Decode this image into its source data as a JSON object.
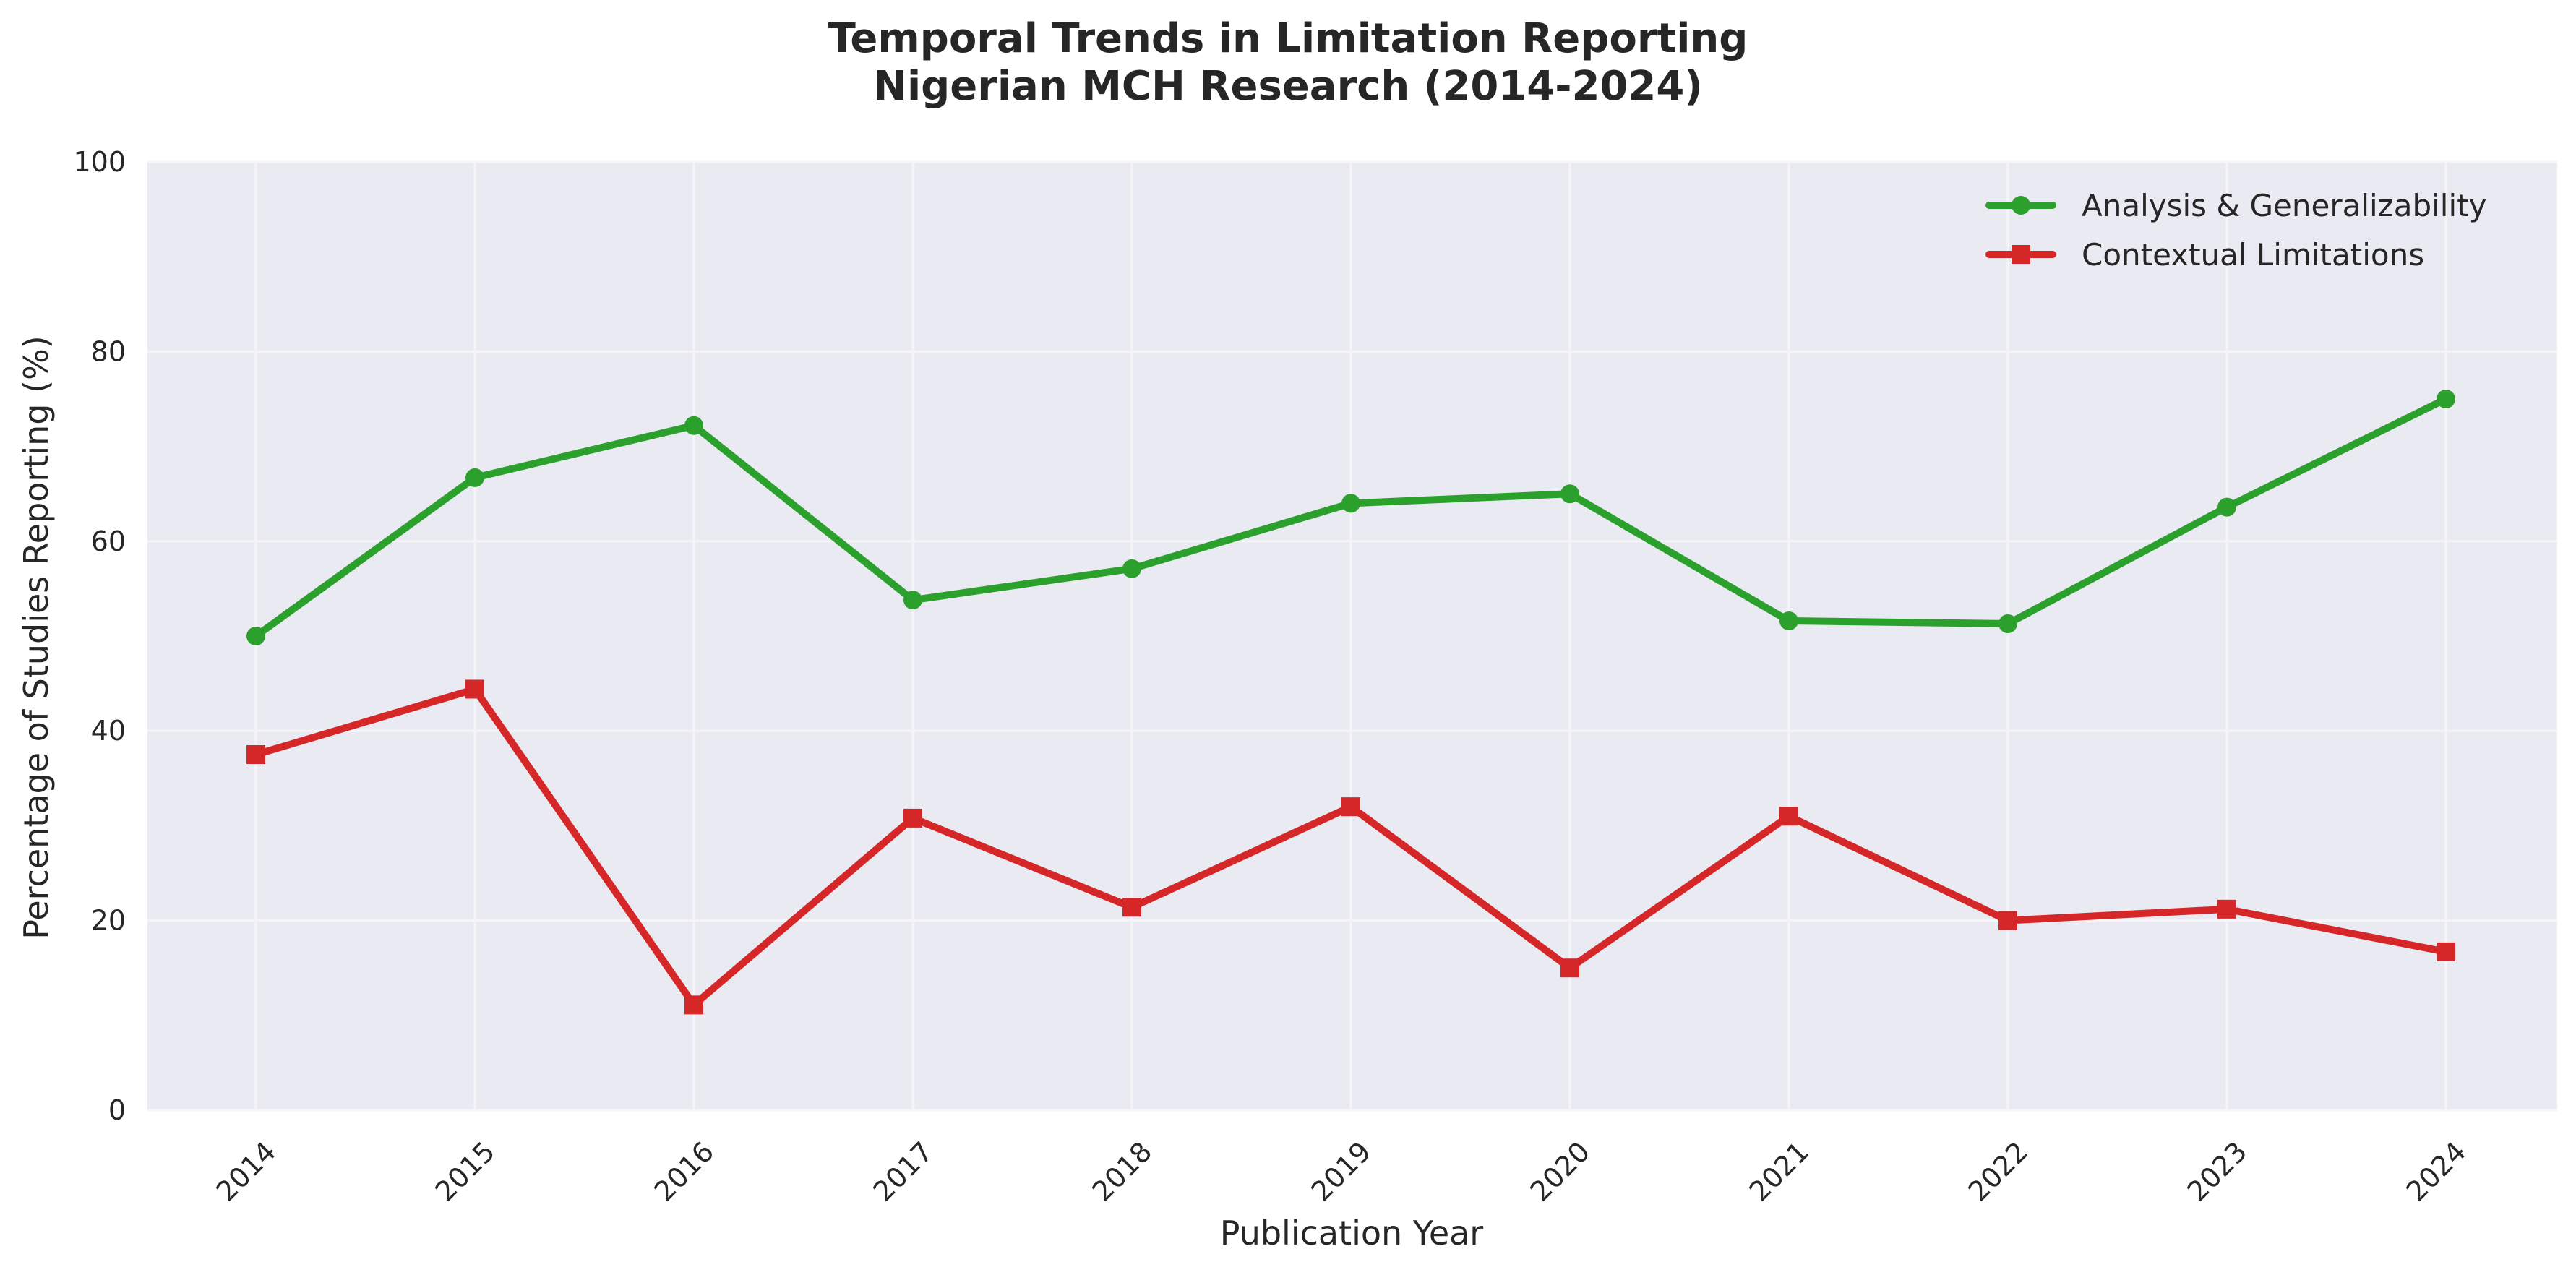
{
  "chart_data": {
    "type": "line",
    "title_lines": [
      "Temporal Trends in Limitation Reporting",
      "Nigerian MCH Research (2014-2024)"
    ],
    "xlabel": "Publication Year",
    "ylabel": "Percentage of Studies Reporting (%)",
    "x": [
      "2014",
      "2015",
      "2016",
      "2017",
      "2018",
      "2019",
      "2020",
      "2021",
      "2022",
      "2023",
      "2024"
    ],
    "ylim": [
      0,
      100
    ],
    "yticks": [
      "0",
      "20",
      "40",
      "60",
      "80",
      "100"
    ],
    "grid": true,
    "legend_position": "top-right",
    "series": [
      {
        "name": "Analysis & Generalizability",
        "color": "#2ca02c",
        "marker": "circle",
        "values": [
          50.0,
          66.7,
          72.2,
          53.8,
          57.1,
          64.0,
          65.0,
          51.6,
          51.3,
          63.6,
          75.0
        ]
      },
      {
        "name": "Contextual Limitations",
        "color": "#d62728",
        "marker": "square",
        "values": [
          37.5,
          44.4,
          11.1,
          30.8,
          21.4,
          32.0,
          15.0,
          31.0,
          20.0,
          21.2,
          16.7
        ]
      }
    ],
    "colors": {
      "plot_background": "#eaeaf2",
      "grid": "#f5f5f8",
      "text": "#262626"
    }
  }
}
